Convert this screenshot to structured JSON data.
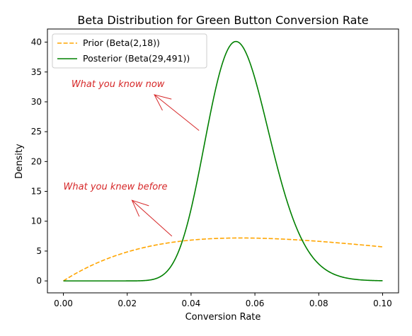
{
  "chart_data": {
    "type": "line",
    "title": "Beta Distribution for Green Button Conversion Rate",
    "xlabel": "Conversion Rate",
    "ylabel": "Density",
    "xlim": [
      -0.005,
      0.105
    ],
    "ylim": [
      -2.0,
      42.2
    ],
    "xticks": [
      0.0,
      0.02,
      0.04,
      0.06,
      0.08,
      0.1
    ],
    "xtick_labels": [
      "0.00",
      "0.02",
      "0.04",
      "0.06",
      "0.08",
      "0.10"
    ],
    "yticks": [
      0,
      5,
      10,
      15,
      20,
      25,
      30,
      35,
      40
    ],
    "ytick_labels": [
      "0",
      "5",
      "10",
      "15",
      "20",
      "25",
      "30",
      "35",
      "40"
    ],
    "grid": false,
    "legend_position": "top-left",
    "series": [
      {
        "name": "Prior (Beta(2,18))",
        "color": "#ffa500",
        "style": "dashed",
        "distribution": {
          "alpha": 2,
          "beta": 18
        },
        "x_range": [
          0,
          0.1
        ]
      },
      {
        "name": "Posterior (Beta(29,491))",
        "color": "#008000",
        "style": "solid",
        "distribution": {
          "alpha": 29,
          "beta": 491
        },
        "x_range": [
          0,
          0.1
        ]
      }
    ],
    "annotations": [
      {
        "text": "What you know now",
        "x": 0.0025,
        "y": 32.5,
        "arrow_from": [
          0.0425,
          25.2
        ],
        "arrow_to": [
          0.0285,
          31.2
        ],
        "color": "#d62728"
      },
      {
        "text": "What you knew before",
        "x": 0.0,
        "y": 15.3,
        "arrow_from": [
          0.034,
          7.5
        ],
        "arrow_to": [
          0.0215,
          13.5
        ],
        "color": "#d62728"
      }
    ]
  }
}
